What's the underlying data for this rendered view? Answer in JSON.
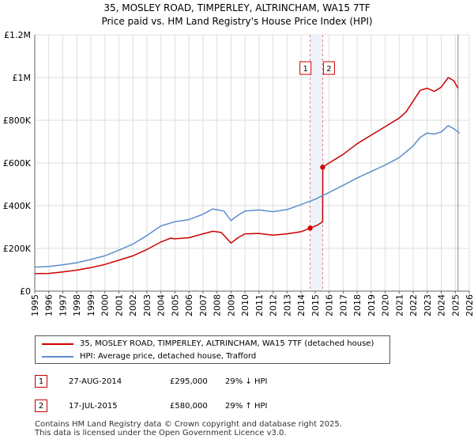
{
  "title_line1": "35, MOSLEY ROAD, TIMPERLEY, ALTRINCHAM, WA15 7TF",
  "title_line2": "Price paid vs. HM Land Registry's House Price Index (HPI)",
  "colors": {
    "property": "#cc0000",
    "hpi": "#5b8fcc",
    "grid": "#dddddd",
    "band": "#eef2fb"
  },
  "chart_data": {
    "type": "line",
    "xlim": [
      1995,
      2026
    ],
    "ylim": [
      0,
      1200000
    ],
    "y_ticks": [
      0,
      200000,
      400000,
      600000,
      800000,
      1000000,
      1200000
    ],
    "y_tick_labels": [
      "£0",
      "£200K",
      "£400K",
      "£600K",
      "£800K",
      "£1M",
      "£1.2M"
    ],
    "x_ticks": [
      1995,
      1996,
      1997,
      1998,
      1999,
      2000,
      2001,
      2002,
      2003,
      2004,
      2005,
      2006,
      2007,
      2008,
      2009,
      2010,
      2011,
      2012,
      2013,
      2014,
      2015,
      2016,
      2017,
      2018,
      2019,
      2020,
      2021,
      2022,
      2023,
      2024,
      2025,
      2026
    ],
    "forecast_start": 2025.2,
    "series": [
      {
        "name": "35, MOSLEY ROAD, TIMPERLEY, ALTRINCHAM, WA15 7TF (detached house)",
        "x": [
          1995,
          1996,
          1997,
          1998,
          1999,
          2000,
          2001,
          2002,
          2003,
          2004,
          2004.7,
          2005,
          2006,
          2007,
          2007.7,
          2008.3,
          2009.0,
          2009.5,
          2010,
          2011,
          2012,
          2013,
          2014,
          2014.65,
          2015.2,
          2015.54,
          2015.55,
          2016,
          2017,
          2018,
          2019,
          2020,
          2021,
          2021.5,
          2022,
          2022.5,
          2023,
          2023.5,
          2024,
          2024.5,
          2024.9,
          2025.2
        ],
        "values": [
          82000,
          83000,
          90000,
          98000,
          110000,
          125000,
          145000,
          165000,
          195000,
          230000,
          248000,
          245000,
          250000,
          268000,
          280000,
          275000,
          225000,
          250000,
          268000,
          270000,
          262000,
          268000,
          278000,
          295000,
          310000,
          325000,
          580000,
          600000,
          640000,
          690000,
          730000,
          770000,
          810000,
          840000,
          890000,
          940000,
          950000,
          935000,
          955000,
          1000000,
          985000,
          950000
        ]
      },
      {
        "name": "HPI: Average price, detached house, Trafford",
        "x": [
          1995,
          1996,
          1997,
          1998,
          1999,
          2000,
          2001,
          2002,
          2003,
          2004,
          2005,
          2006,
          2007,
          2007.7,
          2008.5,
          2009.0,
          2009.5,
          2010,
          2011,
          2012,
          2013,
          2014,
          2015,
          2016,
          2017,
          2018,
          2019,
          2020,
          2021,
          2022,
          2022.5,
          2023,
          2023.5,
          2024,
          2024.5,
          2024.9,
          2025.3
        ],
        "values": [
          112000,
          115000,
          123000,
          133000,
          148000,
          165000,
          192000,
          220000,
          260000,
          305000,
          325000,
          335000,
          360000,
          385000,
          375000,
          330000,
          355000,
          375000,
          380000,
          372000,
          382000,
          405000,
          430000,
          462000,
          495000,
          530000,
          560000,
          590000,
          625000,
          680000,
          720000,
          740000,
          735000,
          745000,
          775000,
          760000,
          740000
        ]
      }
    ],
    "sales": [
      {
        "label": "1",
        "x": 2014.65,
        "value": 295000
      },
      {
        "label": "2",
        "x": 2015.54,
        "value": 580000
      }
    ]
  },
  "legend": {
    "property_label": "35, MOSLEY ROAD, TIMPERLEY, ALTRINCHAM, WA15 7TF (detached house)",
    "hpi_label": "HPI: Average price, detached house, Trafford"
  },
  "transactions": [
    {
      "num": "1",
      "date": "27-AUG-2014",
      "price": "£295,000",
      "hpi": "29% ↓ HPI"
    },
    {
      "num": "2",
      "date": "17-JUL-2015",
      "price": "£580,000",
      "hpi": "29% ↑ HPI"
    }
  ],
  "footer_line1": "Contains HM Land Registry data © Crown copyright and database right 2025.",
  "footer_line2": "This data is licensed under the Open Government Licence v3.0."
}
